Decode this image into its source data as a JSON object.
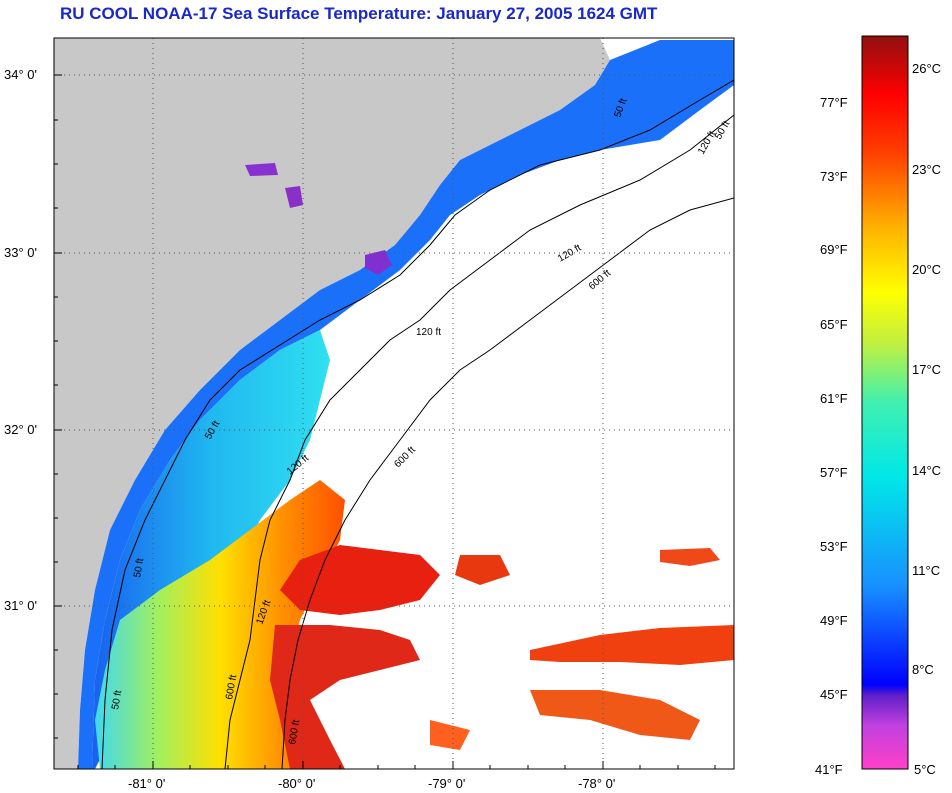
{
  "title": "RU COOL  NOAA-17  Sea Surface Temperature:  January 27, 2005 1624 GMT",
  "axes": {
    "y_labels": [
      "34° 0'",
      "33° 0'",
      "32° 0'",
      "31° 0'"
    ],
    "x_labels": [
      "-81° 0'",
      "-80° 0'",
      "-79° 0'",
      "-78° 0'"
    ]
  },
  "contours": {
    "labels": [
      "50 ft",
      "120 ft",
      "600 ft",
      "120 ft",
      "600 ft",
      "120 ft",
      "50 ft",
      "600 ft",
      "50 ft",
      "120 ft",
      "50 ft",
      "120 ft",
      "600 ft",
      "50 ft"
    ]
  },
  "colorbar": {
    "fahrenheit": [
      "77°F",
      "73°F",
      "69°F",
      "65°F",
      "61°F",
      "57°F",
      "53°F",
      "49°F",
      "45°F",
      "41°F"
    ],
    "celsius": [
      "26°C",
      "23°C",
      "20°C",
      "17°C",
      "14°C",
      "11°C",
      "8°C",
      "5°C"
    ]
  },
  "colors": {
    "land": "#c8c8c8",
    "title": "#1a28c8"
  }
}
